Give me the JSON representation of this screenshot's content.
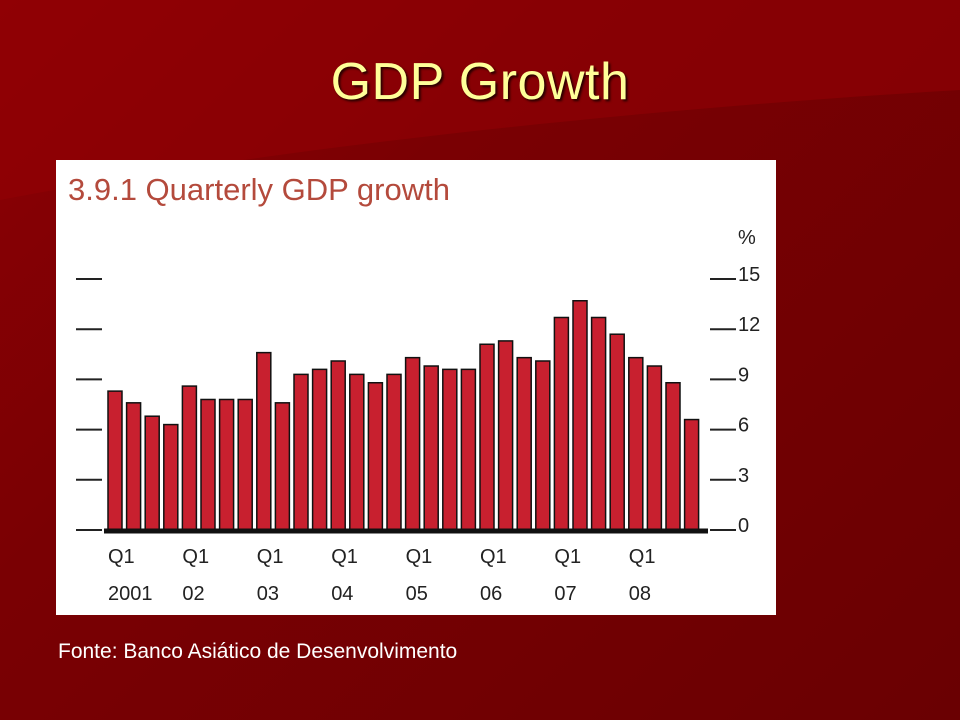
{
  "slide": {
    "title": "GDP Growth",
    "source": "Fonte: Banco Asiático de Desenvolvimento"
  },
  "colors": {
    "background": "#7a0003",
    "title": "#ffff99",
    "bar": "#c8202f",
    "chart_title": "#b44a3c"
  },
  "chart_data": {
    "type": "bar",
    "title": "3.9.1 Quarterly GDP growth",
    "ylabel": "%",
    "ylim": [
      0,
      15
    ],
    "yticks": [
      0,
      3,
      6,
      9,
      12,
      15
    ],
    "ytick_labels": [
      "0",
      "3",
      "6",
      "9",
      "12",
      "15"
    ],
    "grid": false,
    "x_labels": [
      {
        "index": 0,
        "quarter": "Q1",
        "year": "2001"
      },
      {
        "index": 4,
        "quarter": "Q1",
        "year": "02"
      },
      {
        "index": 8,
        "quarter": "Q1",
        "year": "03"
      },
      {
        "index": 12,
        "quarter": "Q1",
        "year": "04"
      },
      {
        "index": 16,
        "quarter": "Q1",
        "year": "05"
      },
      {
        "index": 20,
        "quarter": "Q1",
        "year": "06"
      },
      {
        "index": 24,
        "quarter": "Q1",
        "year": "07"
      },
      {
        "index": 28,
        "quarter": "Q1",
        "year": "08"
      }
    ],
    "categories": [
      "2001 Q1",
      "2001 Q2",
      "2001 Q3",
      "2001 Q4",
      "2002 Q1",
      "2002 Q2",
      "2002 Q3",
      "2002 Q4",
      "2003 Q1",
      "2003 Q2",
      "2003 Q3",
      "2003 Q4",
      "2004 Q1",
      "2004 Q2",
      "2004 Q3",
      "2004 Q4",
      "2005 Q1",
      "2005 Q2",
      "2005 Q3",
      "2005 Q4",
      "2006 Q1",
      "2006 Q2",
      "2006 Q3",
      "2006 Q4",
      "2007 Q1",
      "2007 Q2",
      "2007 Q3",
      "2007 Q4",
      "2008 Q1",
      "2008 Q2",
      "2008 Q3",
      "2008 Q4"
    ],
    "values": [
      8.3,
      7.6,
      6.8,
      6.3,
      8.6,
      7.8,
      7.8,
      7.8,
      10.6,
      7.6,
      9.3,
      9.6,
      10.1,
      9.3,
      8.8,
      9.3,
      10.3,
      9.8,
      9.6,
      9.6,
      11.1,
      11.3,
      10.3,
      10.1,
      12.7,
      13.7,
      12.7,
      11.7,
      10.3,
      9.8,
      8.8,
      6.6
    ]
  }
}
